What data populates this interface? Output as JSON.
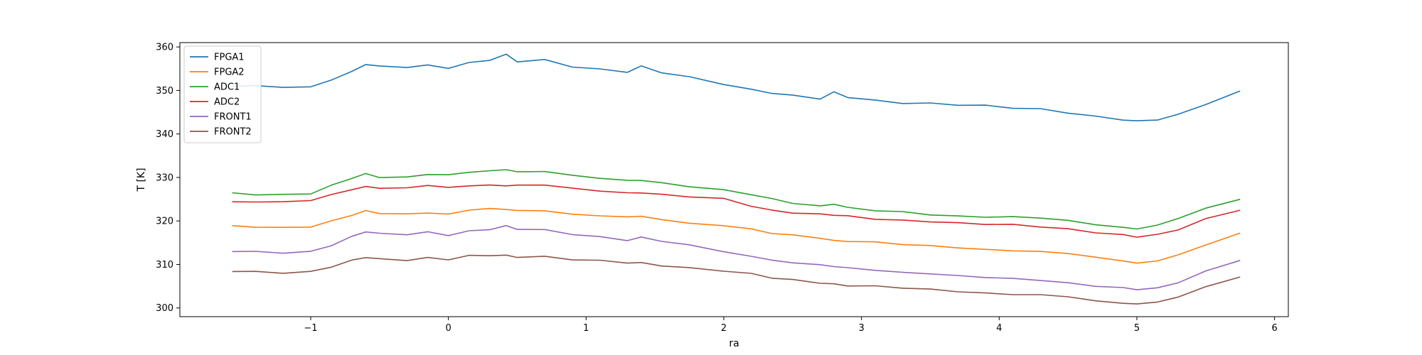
{
  "chart_data": {
    "type": "line",
    "title": "",
    "xlabel": "ra",
    "ylabel": "T [K]",
    "xlim": [
      -1.95,
      6.1
    ],
    "ylim": [
      298,
      361
    ],
    "xticks": [
      -1,
      0,
      1,
      2,
      3,
      4,
      5,
      6
    ],
    "yticks": [
      300,
      310,
      320,
      330,
      340,
      350,
      360
    ],
    "grid": false,
    "legend_position": "top-left",
    "x": [
      -1.57,
      -1.4,
      -1.2,
      -1.0,
      -0.85,
      -0.7,
      -0.6,
      -0.5,
      -0.3,
      -0.15,
      0.0,
      0.15,
      0.3,
      0.42,
      0.5,
      0.7,
      0.9,
      1.1,
      1.3,
      1.4,
      1.55,
      1.75,
      2.0,
      2.2,
      2.35,
      2.5,
      2.7,
      2.8,
      2.9,
      3.1,
      3.3,
      3.5,
      3.7,
      3.9,
      4.1,
      4.3,
      4.5,
      4.7,
      4.9,
      5.0,
      5.15,
      5.3,
      5.5,
      5.75
    ],
    "series": [
      {
        "name": "FPGA1",
        "color": "#1f77b4",
        "values": [
          351.0,
          351.0,
          350.6,
          350.8,
          352.5,
          354.5,
          356.0,
          355.5,
          355.2,
          355.8,
          355.2,
          356.5,
          357.0,
          358.2,
          356.5,
          357.0,
          355.5,
          355.0,
          354.3,
          355.5,
          354.0,
          353.0,
          351.5,
          350.3,
          349.5,
          348.8,
          348.0,
          349.5,
          348.5,
          347.8,
          347.2,
          347.0,
          346.6,
          346.4,
          346.0,
          345.8,
          345.0,
          344.0,
          343.2,
          342.8,
          343.3,
          344.5,
          347.0,
          349.8
        ]
      },
      {
        "name": "FPGA2",
        "color": "#ff7f0e",
        "values": [
          318.7,
          318.6,
          318.5,
          318.8,
          320.0,
          321.3,
          322.2,
          321.7,
          321.6,
          322.0,
          321.6,
          322.5,
          322.7,
          322.6,
          322.4,
          322.5,
          321.6,
          321.2,
          320.8,
          321.0,
          320.3,
          319.6,
          319.0,
          318.2,
          317.0,
          316.7,
          316.0,
          315.6,
          315.4,
          315.2,
          314.5,
          314.2,
          313.8,
          313.5,
          313.3,
          313.0,
          312.5,
          311.5,
          310.8,
          310.3,
          311.0,
          312.2,
          314.5,
          317.0
        ]
      },
      {
        "name": "ADC1",
        "color": "#2ca02c",
        "values": [
          326.4,
          326.2,
          326.1,
          326.3,
          328.0,
          329.8,
          330.8,
          330.2,
          330.1,
          330.8,
          330.4,
          331.2,
          331.4,
          332.0,
          331.3,
          331.5,
          330.3,
          329.8,
          329.2,
          329.5,
          328.8,
          328.0,
          327.0,
          326.0,
          325.0,
          324.2,
          323.5,
          324.0,
          323.0,
          322.3,
          322.0,
          321.5,
          321.2,
          321.0,
          320.9,
          320.6,
          320.0,
          319.2,
          318.6,
          318.3,
          319.0,
          320.5,
          322.8,
          325.0
        ]
      },
      {
        "name": "ADC2",
        "color": "#d62728",
        "values": [
          324.5,
          324.4,
          324.3,
          324.6,
          326.0,
          327.3,
          328.0,
          327.6,
          327.5,
          328.1,
          327.6,
          328.2,
          328.3,
          328.2,
          328.1,
          328.2,
          327.4,
          327.0,
          326.5,
          326.6,
          326.0,
          325.5,
          325.0,
          323.5,
          322.5,
          322.0,
          321.5,
          321.3,
          321.0,
          320.5,
          320.2,
          320.0,
          319.5,
          319.2,
          319.0,
          318.7,
          318.2,
          317.5,
          316.8,
          316.3,
          316.7,
          318.0,
          320.5,
          322.7
        ]
      },
      {
        "name": "FRONT1",
        "color": "#9467bd",
        "values": [
          313.0,
          312.8,
          312.6,
          313.0,
          314.5,
          316.5,
          317.5,
          317.0,
          316.8,
          317.5,
          316.8,
          317.8,
          318.0,
          318.8,
          318.0,
          318.0,
          317.0,
          316.5,
          315.5,
          316.2,
          315.2,
          314.5,
          313.0,
          312.0,
          311.0,
          310.3,
          309.8,
          309.5,
          309.3,
          308.8,
          308.2,
          307.8,
          307.3,
          307.0,
          306.8,
          306.5,
          305.8,
          305.0,
          304.5,
          304.2,
          304.6,
          306.0,
          308.5,
          311.0
        ]
      },
      {
        "name": "FRONT2",
        "color": "#8c564b",
        "values": [
          308.4,
          308.3,
          308.2,
          308.4,
          309.5,
          310.8,
          311.6,
          311.2,
          311.1,
          311.6,
          311.2,
          311.9,
          312.0,
          312.0,
          311.8,
          311.9,
          311.2,
          310.8,
          310.3,
          310.3,
          309.8,
          309.3,
          308.6,
          307.8,
          306.8,
          306.4,
          305.8,
          305.6,
          305.2,
          305.0,
          304.5,
          304.2,
          303.8,
          303.5,
          303.2,
          303.0,
          302.5,
          301.5,
          301.1,
          301.0,
          301.5,
          302.5,
          304.8,
          307.0
        ]
      }
    ]
  }
}
